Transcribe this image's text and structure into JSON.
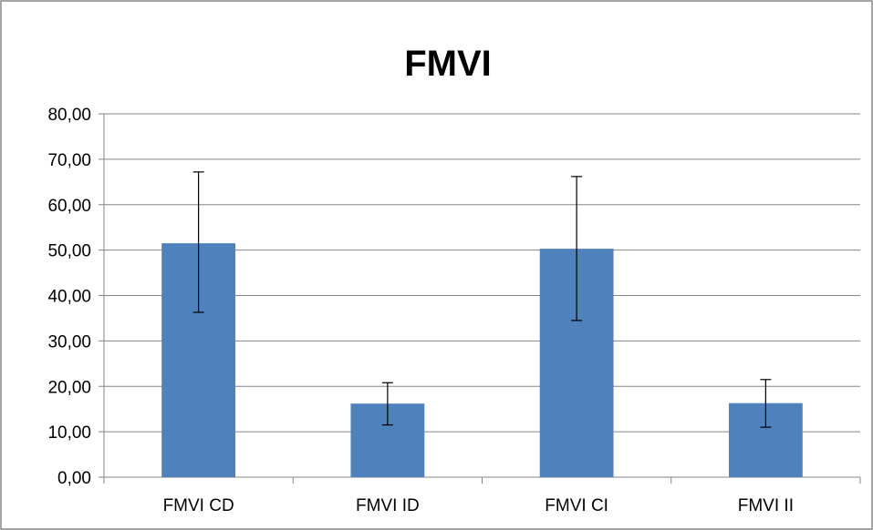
{
  "chart_data": {
    "type": "bar",
    "title": "FMVI",
    "xlabel": "",
    "ylabel": "",
    "categories": [
      "FMVI CD",
      "FMVI ID",
      "FMVI CI",
      "FMVI II"
    ],
    "series": [
      {
        "values": [
          51.5,
          16.2,
          50.3,
          16.3
        ],
        "error_low": [
          36.3,
          11.5,
          34.5,
          11.0
        ],
        "error_high": [
          67.2,
          20.8,
          66.2,
          21.5
        ],
        "color": "#4F81BD"
      }
    ],
    "ylim": [
      0,
      80
    ],
    "yticks": [
      0,
      10,
      20,
      30,
      40,
      50,
      60,
      70,
      80
    ],
    "ytick_labels": [
      "0,00",
      "10,00",
      "20,00",
      "30,00",
      "40,00",
      "50,00",
      "60,00",
      "70,00",
      "80,00"
    ],
    "grid": true,
    "legend": "none"
  },
  "colors": {
    "bar": "#4F81BD",
    "grid": "#868686",
    "axis": "#868686",
    "error_bar": "#000000",
    "border": "#868686",
    "text": "#000000"
  }
}
